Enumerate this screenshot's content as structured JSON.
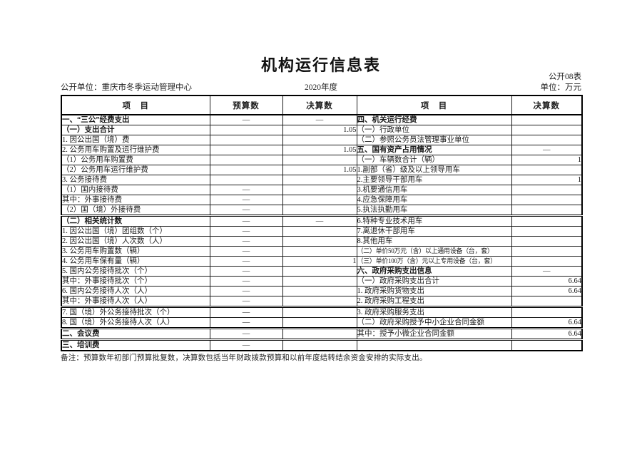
{
  "page": {
    "title": "机构运行信息表",
    "table_code": "公开08表",
    "publisher": "公开单位：重庆市冬季运动管理中心",
    "year": "2020年度",
    "unit": "单位：万元",
    "note": "备注：预算数年初部门预算批复数，决算数包括当年财政拨款预算和以前年度结转结余资金安排的实际支出。"
  },
  "table": {
    "headers": {
      "item_left": "项　目",
      "budget": "预算数",
      "final_left": "决算数",
      "item_right": "项　目",
      "final_right": "决算数"
    },
    "rows": [
      {
        "left": {
          "label": "一、“三公”经费支出",
          "indent": 0,
          "bold": true,
          "budget": "—",
          "final": "—"
        },
        "right": {
          "label": "四、机关运行经费",
          "indent": 0,
          "bold": true,
          "final": ""
        },
        "sep": false
      },
      {
        "left": {
          "label": "（一）支出合计",
          "indent": 1,
          "bold": true,
          "budget": "",
          "final": "1.05"
        },
        "right": {
          "label": "（一）行政单位",
          "indent": 1,
          "bold": false,
          "final": ""
        },
        "sep": false
      },
      {
        "left": {
          "label": "1. 因公出国（境）费",
          "indent": 2,
          "bold": false,
          "budget": "",
          "final": ""
        },
        "right": {
          "label": "（二）参照公务员法管理事业单位",
          "indent": 1,
          "bold": false,
          "final": ""
        },
        "sep": false
      },
      {
        "left": {
          "label": "2. 公务用车购置及运行维护费",
          "indent": 2,
          "bold": false,
          "budget": "",
          "final": "1.05"
        },
        "right": {
          "label": "五、国有资产占用情况",
          "indent": 0,
          "bold": true,
          "final": "—"
        },
        "sep": false
      },
      {
        "left": {
          "label": "（1）公务用车购置费",
          "indent": 3,
          "bold": false,
          "budget": "",
          "final": ""
        },
        "right": {
          "label": "（一）车辆数合计（辆）",
          "indent": 1,
          "bold": false,
          "final": "1"
        },
        "sep": false
      },
      {
        "left": {
          "label": "（2）公务用车运行维护费",
          "indent": 3,
          "bold": false,
          "budget": "",
          "final": "1.05"
        },
        "right": {
          "label": "1.副部（省）级及以上领导用车",
          "indent": 2,
          "bold": false,
          "final": ""
        },
        "sep": false
      },
      {
        "left": {
          "label": "3. 公务接待费",
          "indent": 2,
          "bold": false,
          "budget": "",
          "final": ""
        },
        "right": {
          "label": "2.主要领导干部用车",
          "indent": 2,
          "bold": false,
          "final": "1"
        },
        "sep": false
      },
      {
        "left": {
          "label": "（1）国内接待费",
          "indent": 3,
          "bold": false,
          "budget": "—",
          "final": ""
        },
        "right": {
          "label": "3.机要通信用车",
          "indent": 2,
          "bold": false,
          "final": ""
        },
        "sep": false
      },
      {
        "left": {
          "label": "其中：外事接待费",
          "indent": 6,
          "bold": false,
          "budget": "—",
          "final": ""
        },
        "right": {
          "label": "4.应急保障用车",
          "indent": 2,
          "bold": false,
          "final": ""
        },
        "sep": false
      },
      {
        "left": {
          "label": "（2）国（境）外接待费",
          "indent": 3,
          "bold": false,
          "budget": "—",
          "final": ""
        },
        "right": {
          "label": "5.执法执勤用车",
          "indent": 2,
          "bold": false,
          "final": ""
        },
        "sep": false
      },
      {
        "left": {
          "label": "（二）相关统计数",
          "indent": 1,
          "bold": true,
          "budget": "—",
          "final": "—"
        },
        "right": {
          "label": "6.特种专业技术用车",
          "indent": 2,
          "bold": false,
          "final": ""
        },
        "sep": true
      },
      {
        "left": {
          "label": "1. 因公出国（境）团组数（个）",
          "indent": 2,
          "bold": false,
          "budget": "—",
          "final": ""
        },
        "right": {
          "label": "7.离退休干部用车",
          "indent": 2,
          "bold": false,
          "final": ""
        },
        "sep": false
      },
      {
        "left": {
          "label": "2. 因公出国（境）人次数（人）",
          "indent": 2,
          "bold": false,
          "budget": "—",
          "final": ""
        },
        "right": {
          "label": "8.其他用车",
          "indent": 2,
          "bold": false,
          "final": ""
        },
        "sep": false
      },
      {
        "left": {
          "label": "3. 公务用车购置数（辆）",
          "indent": 2,
          "bold": false,
          "budget": "—",
          "final": ""
        },
        "right": {
          "label": "（二）单价50万元（含）以上通用设备（台，套）",
          "indent": 1,
          "bold": false,
          "small": true,
          "final": ""
        },
        "sep": false
      },
      {
        "left": {
          "label": "4. 公务用车保有量（辆）",
          "indent": 2,
          "bold": false,
          "budget": "—",
          "final": "1"
        },
        "right": {
          "label": "（三）单价100万（含）元以上专用设备（台，套）",
          "indent": 1,
          "bold": false,
          "small": true,
          "final": ""
        },
        "sep": false
      },
      {
        "left": {
          "label": "5. 国内公务接待批次（个）",
          "indent": 2,
          "bold": false,
          "budget": "—",
          "final": ""
        },
        "right": {
          "label": "六、政府采购支出信息",
          "indent": 0,
          "bold": true,
          "final": "—"
        },
        "sep": false
      },
      {
        "left": {
          "label": "其中：外事接待批次（个）",
          "indent": 4,
          "bold": false,
          "budget": "—",
          "final": ""
        },
        "right": {
          "label": "（一）政府采购支出合计",
          "indent": 3,
          "bold": false,
          "final": "6.64"
        },
        "sep": false
      },
      {
        "left": {
          "label": "6. 国内公务接待人次（人）",
          "indent": 2,
          "bold": false,
          "budget": "—",
          "final": ""
        },
        "right": {
          "label": "1. 政府采购货物支出",
          "indent": 4,
          "bold": false,
          "final": "6.64"
        },
        "sep": false
      },
      {
        "left": {
          "label": "其中：外事接待人次（人）",
          "indent": 4,
          "bold": false,
          "budget": "—",
          "final": ""
        },
        "right": {
          "label": "2. 政府采购工程支出",
          "indent": 4,
          "bold": false,
          "final": ""
        },
        "sep": false
      },
      {
        "left": {
          "label": "7. 国（境）外公务接待批次（个）",
          "indent": 2,
          "bold": false,
          "budget": "—",
          "final": ""
        },
        "right": {
          "label": "3. 政府采购服务支出",
          "indent": 4,
          "bold": false,
          "final": ""
        },
        "sep": true
      },
      {
        "left": {
          "label": "8. 国（境）外公务接待人次（人）",
          "indent": 2,
          "bold": false,
          "budget": "—",
          "final": ""
        },
        "right": {
          "label": "（二）政府采购授予中小企业合同金额",
          "indent": 3,
          "bold": false,
          "final": "6.64"
        },
        "sep": false
      },
      {
        "left": {
          "label": "二、会议费",
          "indent": 0,
          "bold": true,
          "budget": "—",
          "final": ""
        },
        "right": {
          "label": "其中：授予小微企业合同金额",
          "indent": 5,
          "bold": false,
          "final": "6.64"
        },
        "sep": true
      },
      {
        "left": {
          "label": "三、培训费",
          "indent": 0,
          "bold": true,
          "budget": "—",
          "final": ""
        },
        "right": {
          "label": "",
          "indent": 0,
          "bold": false,
          "final": ""
        },
        "sep": true
      }
    ]
  }
}
